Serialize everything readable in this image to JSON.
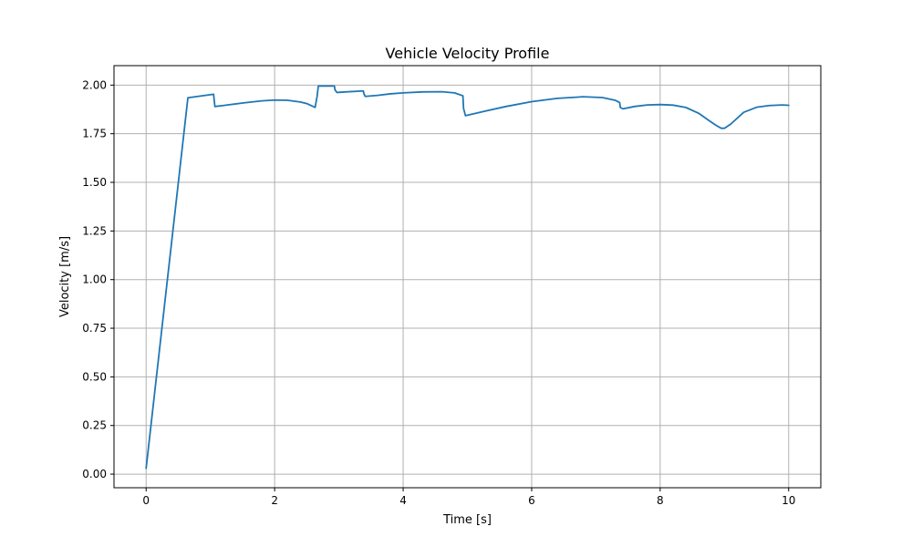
{
  "chart_data": {
    "type": "line",
    "title": "Vehicle Velocity Profile",
    "xlabel": "Time [s]",
    "ylabel": "Velocity [m/s]",
    "xlim": [
      -0.5,
      10.5
    ],
    "ylim": [
      -0.07,
      2.1
    ],
    "grid": true,
    "line_color": "#1f77b4",
    "x_ticks": [
      0,
      2,
      4,
      6,
      8,
      10
    ],
    "x_tick_labels": [
      "0",
      "2",
      "4",
      "6",
      "8",
      "10"
    ],
    "y_ticks": [
      0.0,
      0.25,
      0.5,
      0.75,
      1.0,
      1.25,
      1.5,
      1.75,
      2.0
    ],
    "y_tick_labels": [
      "0.00",
      "0.25",
      "0.50",
      "0.75",
      "1.00",
      "1.25",
      "1.50",
      "1.75",
      "2.00"
    ],
    "series": [
      {
        "x": [
          0.0,
          0.65,
          1.05,
          1.07,
          1.2,
          1.5,
          1.8,
          2.0,
          2.2,
          2.4,
          2.5,
          2.6,
          2.63,
          2.66,
          2.68,
          2.93,
          2.94,
          2.97,
          3.1,
          3.38,
          3.39,
          3.41,
          3.6,
          3.8,
          4.0,
          4.3,
          4.6,
          4.8,
          4.93,
          4.94,
          4.97,
          5.3,
          5.6,
          6.0,
          6.4,
          6.8,
          7.1,
          7.3,
          7.37,
          7.38,
          7.42,
          7.6,
          7.8,
          8.0,
          8.2,
          8.4,
          8.6,
          8.75,
          8.87,
          8.95,
          9.0,
          9.1,
          9.3,
          9.5,
          9.7,
          9.9,
          10.0
        ],
        "y": [
          0.03,
          1.935,
          1.953,
          1.89,
          1.895,
          1.908,
          1.919,
          1.923,
          1.922,
          1.913,
          1.905,
          1.89,
          1.885,
          1.94,
          1.995,
          1.995,
          1.975,
          1.962,
          1.965,
          1.97,
          1.955,
          1.942,
          1.947,
          1.955,
          1.96,
          1.965,
          1.966,
          1.96,
          1.945,
          1.88,
          1.843,
          1.868,
          1.89,
          1.915,
          1.932,
          1.94,
          1.936,
          1.922,
          1.91,
          1.885,
          1.878,
          1.89,
          1.898,
          1.9,
          1.897,
          1.885,
          1.855,
          1.82,
          1.793,
          1.778,
          1.778,
          1.8,
          1.86,
          1.886,
          1.895,
          1.898,
          1.896
        ]
      }
    ]
  }
}
